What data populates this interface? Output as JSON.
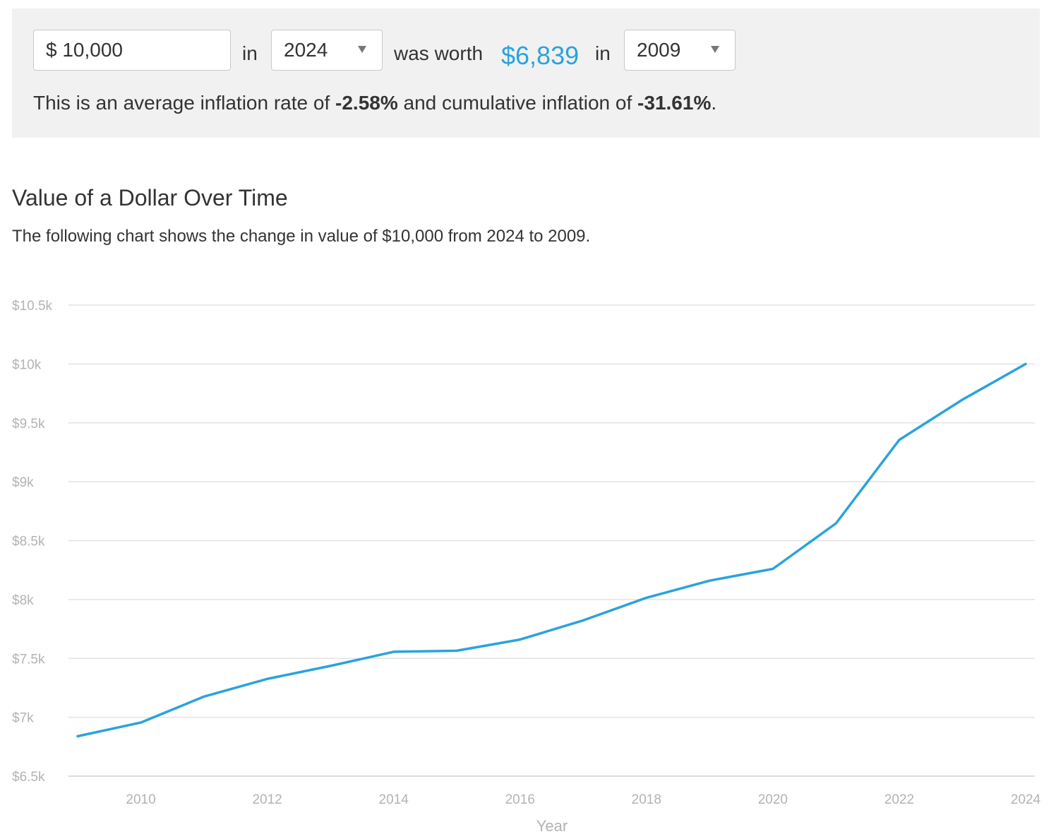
{
  "calculator": {
    "amount_value": "$ 10,000",
    "word_in_1": "in",
    "from_year": "2024",
    "was_worth": "was worth",
    "worth_value": "$6,839",
    "word_in_2": "in",
    "to_year": "2009",
    "summary_prefix": "This is an average inflation rate of ",
    "avg_rate": "-2.58%",
    "summary_middle": " and cumulative inflation of ",
    "cumulative": "-31.61%",
    "summary_suffix": ".",
    "accent_color": "#2aa3dc"
  },
  "section": {
    "title": "Value of a Dollar Over Time",
    "description": "The following chart shows the change in value of $10,000 from 2024 to 2009."
  },
  "chart_data": {
    "type": "line",
    "title": "",
    "xlabel": "Year",
    "ylabel": "",
    "xlim": [
      2009,
      2024
    ],
    "ylim": [
      6500,
      10500
    ],
    "yticks": [
      10500,
      10000,
      9500,
      9000,
      8500,
      8000,
      7500,
      7000,
      6500
    ],
    "ytick_labels": [
      "$10.5k",
      "$10k",
      "$9.5k",
      "$9k",
      "$8.5k",
      "$8k",
      "$7.5k",
      "$7k",
      "$6.5k"
    ],
    "xticks": [
      2010,
      2012,
      2014,
      2016,
      2018,
      2020,
      2022,
      2024
    ],
    "xtick_labels": [
      "2010",
      "2012",
      "2014",
      "2016",
      "2018",
      "2020",
      "2022",
      "2024"
    ],
    "grid": true,
    "series": [
      {
        "color": "#2aa3dc",
        "x": [
          2009,
          2010,
          2011,
          2012,
          2013,
          2014,
          2015,
          2016,
          2017,
          2018,
          2019,
          2020,
          2021,
          2022,
          2023,
          2024
        ],
        "values": [
          6839,
          6955,
          7176,
          7326,
          7436,
          7556,
          7565,
          7660,
          7823,
          8015,
          8160,
          8260,
          8647,
          9355,
          9697,
          10000
        ]
      }
    ]
  }
}
